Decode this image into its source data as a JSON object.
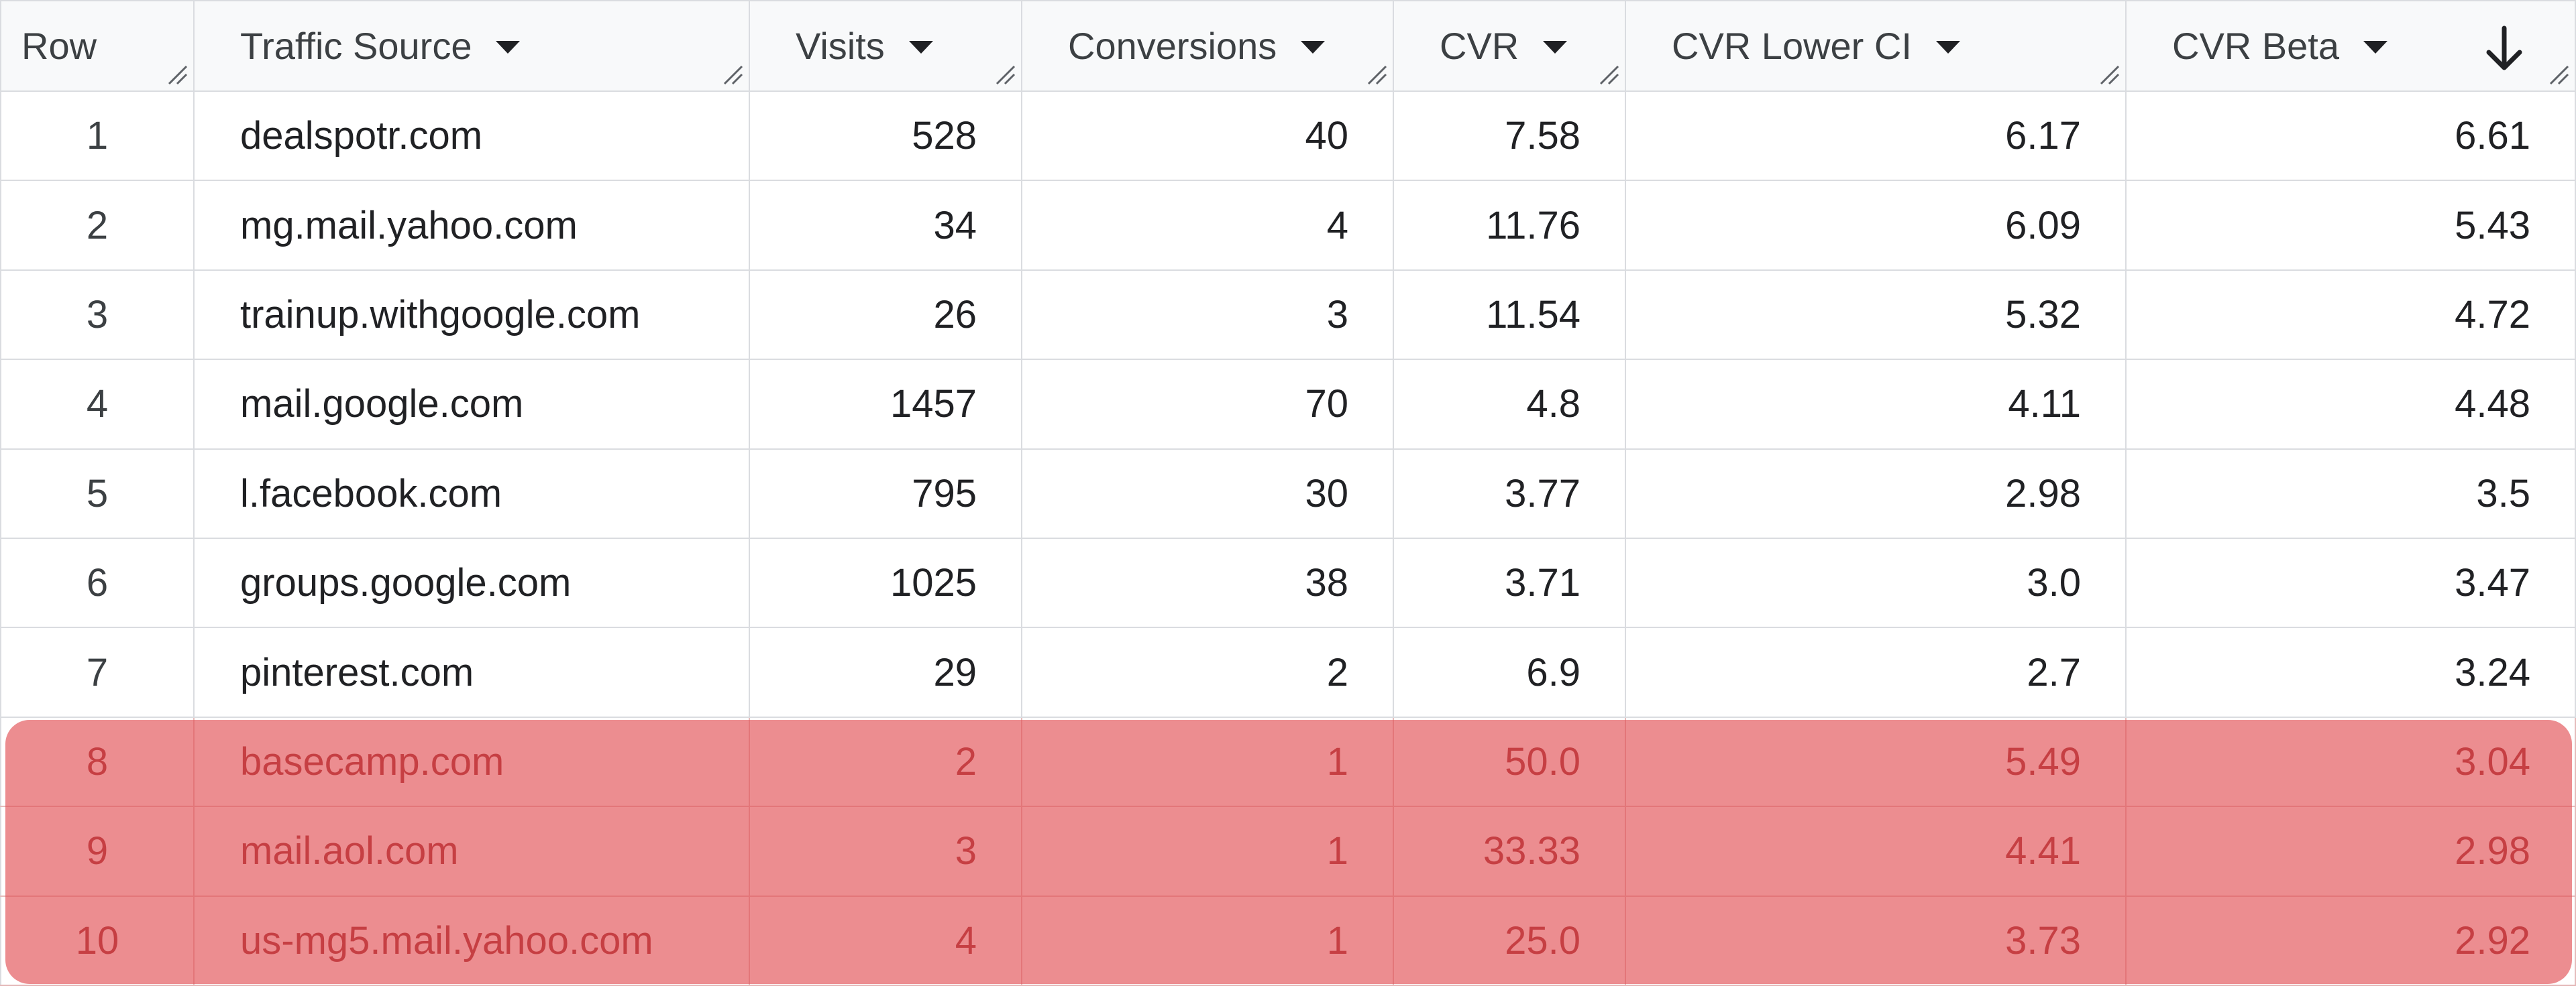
{
  "table": {
    "columns": [
      {
        "key": "row",
        "label": "Row"
      },
      {
        "key": "traffic_source",
        "label": "Traffic Source"
      },
      {
        "key": "visits",
        "label": "Visits"
      },
      {
        "key": "conversions",
        "label": "Conversions"
      },
      {
        "key": "cvr",
        "label": "CVR"
      },
      {
        "key": "cvr_lower_ci",
        "label": "CVR Lower CI"
      },
      {
        "key": "cvr_beta",
        "label": "CVR Beta"
      }
    ],
    "sorted_column": "cvr_beta",
    "sort_direction": "descending",
    "rows": [
      {
        "row": "1",
        "traffic_source": "dealspotr.com",
        "visits": "528",
        "conversions": "40",
        "cvr": "7.58",
        "cvr_lower_ci": "6.17",
        "cvr_beta": "6.61"
      },
      {
        "row": "2",
        "traffic_source": "mg.mail.yahoo.com",
        "visits": "34",
        "conversions": "4",
        "cvr": "11.76",
        "cvr_lower_ci": "6.09",
        "cvr_beta": "5.43"
      },
      {
        "row": "3",
        "traffic_source": "trainup.withgoogle.com",
        "visits": "26",
        "conversions": "3",
        "cvr": "11.54",
        "cvr_lower_ci": "5.32",
        "cvr_beta": "4.72"
      },
      {
        "row": "4",
        "traffic_source": "mail.google.com",
        "visits": "1457",
        "conversions": "70",
        "cvr": "4.8",
        "cvr_lower_ci": "4.11",
        "cvr_beta": "4.48"
      },
      {
        "row": "5",
        "traffic_source": "l.facebook.com",
        "visits": "795",
        "conversions": "30",
        "cvr": "3.77",
        "cvr_lower_ci": "2.98",
        "cvr_beta": "3.5"
      },
      {
        "row": "6",
        "traffic_source": "groups.google.com",
        "visits": "1025",
        "conversions": "38",
        "cvr": "3.71",
        "cvr_lower_ci": "3.0",
        "cvr_beta": "3.47"
      },
      {
        "row": "7",
        "traffic_source": "pinterest.com",
        "visits": "29",
        "conversions": "2",
        "cvr": "6.9",
        "cvr_lower_ci": "2.7",
        "cvr_beta": "3.24"
      },
      {
        "row": "8",
        "traffic_source": "basecamp.com",
        "visits": "2",
        "conversions": "1",
        "cvr": "50.0",
        "cvr_lower_ci": "5.49",
        "cvr_beta": "3.04"
      },
      {
        "row": "9",
        "traffic_source": "mail.aol.com",
        "visits": "3",
        "conversions": "1",
        "cvr": "33.33",
        "cvr_lower_ci": "4.41",
        "cvr_beta": "2.98"
      },
      {
        "row": "10",
        "traffic_source": "us-mg5.mail.yahoo.com",
        "visits": "4",
        "conversions": "1",
        "cvr": "25.0",
        "cvr_lower_ci": "3.73",
        "cvr_beta": "2.92"
      }
    ],
    "highlighted_rows": [
      "8",
      "9",
      "10"
    ]
  },
  "icons": {
    "column_menu": "caret-down-icon",
    "column_resize": "resize-handle-icon",
    "sort_indicator": "arrow-down-icon"
  },
  "colors": {
    "highlight": "#e25256",
    "highlight_text": "#8f1c1f",
    "grid_line": "#dadce0",
    "header_bg": "#f8f9fa"
  }
}
